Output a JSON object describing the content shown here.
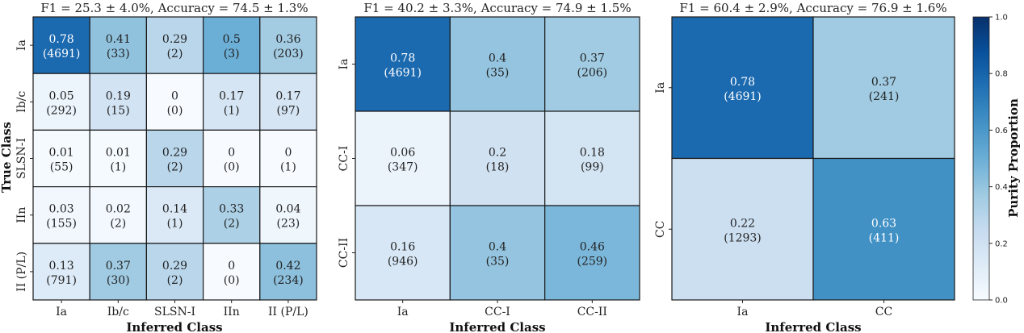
{
  "chart_data": [
    {
      "type": "heatmap",
      "title": "F1 = 25.3 ± 4.0%, Accuracy = 74.5 ± 1.3%",
      "xlabel": "Inferred Class",
      "ylabel": "True Class",
      "x_categories": [
        "Ia",
        "Ib/c",
        "SLSN-I",
        "IIn",
        "II (P/L)"
      ],
      "y_categories": [
        "Ia",
        "Ib/c",
        "SLSN-I",
        "IIn",
        "II (P/L)"
      ],
      "values": [
        [
          0.78,
          0.41,
          0.29,
          0.5,
          0.36
        ],
        [
          0.05,
          0.19,
          0.0,
          0.17,
          0.17
        ],
        [
          0.01,
          0.01,
          0.29,
          0.0,
          0.0
        ],
        [
          0.03,
          0.02,
          0.14,
          0.33,
          0.04
        ],
        [
          0.13,
          0.37,
          0.29,
          0.0,
          0.42
        ]
      ],
      "counts": [
        [
          4691,
          33,
          2,
          3,
          203
        ],
        [
          292,
          15,
          0,
          1,
          97
        ],
        [
          55,
          1,
          2,
          0,
          1
        ],
        [
          155,
          2,
          1,
          2,
          23
        ],
        [
          791,
          30,
          2,
          0,
          234
        ]
      ]
    },
    {
      "type": "heatmap",
      "title": "F1 = 40.2 ± 3.3%, Accuracy = 74.9 ± 1.5%",
      "xlabel": "Inferred Class",
      "ylabel": "",
      "x_categories": [
        "Ia",
        "CC-I",
        "CC-II"
      ],
      "y_categories": [
        "Ia",
        "CC-I",
        "CC-II"
      ],
      "values": [
        [
          0.78,
          0.4,
          0.37
        ],
        [
          0.06,
          0.2,
          0.18
        ],
        [
          0.16,
          0.4,
          0.46
        ]
      ],
      "counts": [
        [
          4691,
          35,
          206
        ],
        [
          347,
          18,
          99
        ],
        [
          946,
          35,
          259
        ]
      ]
    },
    {
      "type": "heatmap",
      "title": "F1 = 60.4 ± 2.9%, Accuracy = 76.9 ± 1.6%",
      "xlabel": "Inferred Class",
      "ylabel": "",
      "x_categories": [
        "Ia",
        "CC"
      ],
      "y_categories": [
        "Ia",
        "CC"
      ],
      "values": [
        [
          0.78,
          0.37
        ],
        [
          0.22,
          0.63
        ]
      ],
      "counts": [
        [
          4691,
          241
        ],
        [
          1293,
          411
        ]
      ]
    }
  ],
  "colorbar": {
    "label": "Purity Proportion",
    "range": [
      0.0,
      1.0
    ],
    "ticks": [
      "0.0",
      "0.2",
      "0.4",
      "0.6",
      "0.8",
      "1.0"
    ],
    "colormap": "Blues",
    "colors": [
      "#f7fbff",
      "#deebf7",
      "#c6dbef",
      "#9ecae1",
      "#6baed6",
      "#4292c6",
      "#2171b5",
      "#08519c",
      "#08306b"
    ]
  }
}
